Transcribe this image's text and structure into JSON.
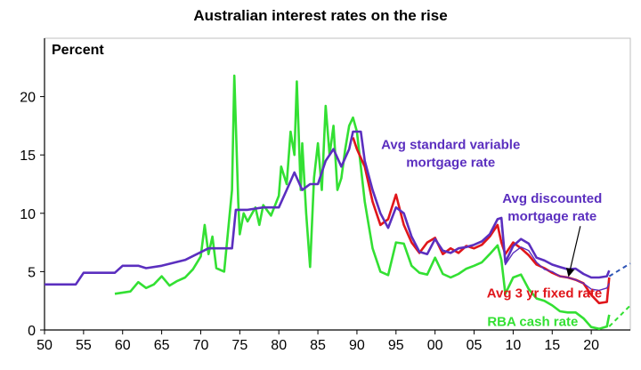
{
  "chart_data": {
    "type": "line",
    "title": "Australian interest rates on the rise",
    "ylabel": "Percent",
    "xlim": [
      1950,
      2025
    ],
    "ylim": [
      0,
      25
    ],
    "x_ticks": [
      1950,
      1955,
      1960,
      1965,
      1970,
      1975,
      1980,
      1985,
      1990,
      1995,
      2000,
      2005,
      2010,
      2015,
      2020
    ],
    "x_tick_labels": [
      "50",
      "55",
      "60",
      "65",
      "70",
      "75",
      "80",
      "85",
      "90",
      "95",
      "00",
      "05",
      "10",
      "15",
      "20"
    ],
    "y_ticks": [
      0,
      5,
      10,
      15,
      20
    ],
    "y_tick_labels": [
      "0",
      "5",
      "10",
      "15",
      "20"
    ],
    "grid": false,
    "series": [
      {
        "name": "Avg standard variable mortgage rate",
        "color": "#5b2fbf",
        "points": [
          [
            1950,
            3.9
          ],
          [
            1954,
            3.9
          ],
          [
            1955,
            4.9
          ],
          [
            1959,
            4.9
          ],
          [
            1960,
            5.5
          ],
          [
            1962,
            5.5
          ],
          [
            1963,
            5.3
          ],
          [
            1965,
            5.5
          ],
          [
            1968,
            6.0
          ],
          [
            1971,
            7.0
          ],
          [
            1974,
            7.0
          ],
          [
            1974.5,
            10.3
          ],
          [
            1976,
            10.3
          ],
          [
            1978,
            10.5
          ],
          [
            1980,
            10.5
          ],
          [
            1981,
            12.0
          ],
          [
            1982,
            13.5
          ],
          [
            1983,
            12.0
          ],
          [
            1984,
            12.5
          ],
          [
            1985,
            12.5
          ],
          [
            1986,
            14.5
          ],
          [
            1987,
            15.5
          ],
          [
            1988,
            14.0
          ],
          [
            1989,
            15.5
          ],
          [
            1989.5,
            17.0
          ],
          [
            1990.5,
            17.0
          ],
          [
            1991,
            14.5
          ],
          [
            1992,
            12.0
          ],
          [
            1993,
            10.0
          ],
          [
            1994,
            8.75
          ],
          [
            1995,
            10.5
          ],
          [
            1996,
            10.0
          ],
          [
            1997,
            8.0
          ],
          [
            1998,
            6.7
          ],
          [
            1999,
            6.5
          ],
          [
            2000,
            7.8
          ],
          [
            2001,
            6.8
          ],
          [
            2002,
            6.6
          ],
          [
            2003,
            7.0
          ],
          [
            2004,
            7.1
          ],
          [
            2005,
            7.3
          ],
          [
            2006,
            7.6
          ],
          [
            2007,
            8.2
          ],
          [
            2008,
            9.5
          ],
          [
            2008.5,
            9.6
          ],
          [
            2009,
            5.8
          ],
          [
            2010,
            7.2
          ],
          [
            2011,
            7.8
          ],
          [
            2012,
            7.4
          ],
          [
            2013,
            6.2
          ],
          [
            2014,
            5.95
          ],
          [
            2015,
            5.6
          ],
          [
            2016,
            5.4
          ],
          [
            2017,
            5.2
          ],
          [
            2018,
            5.25
          ],
          [
            2019,
            4.8
          ],
          [
            2020,
            4.5
          ],
          [
            2021,
            4.5
          ],
          [
            2022,
            4.6
          ],
          [
            2022.3,
            5.1
          ]
        ]
      },
      {
        "name": "Avg discounted mortgage rate",
        "color": "#5b2fbf",
        "points": [
          [
            2008.5,
            9.0
          ],
          [
            2009,
            5.6
          ],
          [
            2010,
            6.6
          ],
          [
            2011,
            7.1
          ],
          [
            2012,
            6.8
          ],
          [
            2013,
            5.8
          ],
          [
            2014,
            5.2
          ],
          [
            2015,
            5.0
          ],
          [
            2016,
            4.6
          ],
          [
            2017,
            4.5
          ],
          [
            2018,
            4.3
          ],
          [
            2019,
            4.0
          ],
          [
            2020,
            3.5
          ],
          [
            2021,
            3.4
          ],
          [
            2022,
            3.6
          ],
          [
            2022.3,
            4.0
          ]
        ]
      },
      {
        "name": "Avg 3 yr fixed rate",
        "color": "#e0161b",
        "points": [
          [
            1989.5,
            16.5
          ],
          [
            1990,
            15.5
          ],
          [
            1991,
            14.0
          ],
          [
            1992,
            11.0
          ],
          [
            1993,
            9.0
          ],
          [
            1994,
            9.5
          ],
          [
            1995,
            11.6
          ],
          [
            1996,
            9.0
          ],
          [
            1997,
            7.5
          ],
          [
            1998,
            6.6
          ],
          [
            1999,
            7.5
          ],
          [
            2000,
            7.9
          ],
          [
            2001,
            6.5
          ],
          [
            2002,
            7.0
          ],
          [
            2003,
            6.6
          ],
          [
            2004,
            7.2
          ],
          [
            2005,
            7.0
          ],
          [
            2006,
            7.3
          ],
          [
            2007,
            8.0
          ],
          [
            2008,
            9.0
          ],
          [
            2008.5,
            7.5
          ],
          [
            2009,
            6.5
          ],
          [
            2010,
            7.5
          ],
          [
            2011,
            7.0
          ],
          [
            2012,
            6.4
          ],
          [
            2013,
            5.6
          ],
          [
            2014,
            5.3
          ],
          [
            2015,
            4.9
          ],
          [
            2016,
            4.6
          ],
          [
            2017,
            4.5
          ],
          [
            2018,
            4.3
          ],
          [
            2019,
            4.0
          ],
          [
            2020,
            3.0
          ],
          [
            2021,
            2.3
          ],
          [
            2022,
            2.4
          ],
          [
            2022.3,
            4.5
          ]
        ]
      },
      {
        "name": "RBA cash rate",
        "color": "#33e033",
        "points": [
          [
            1959,
            3.1
          ],
          [
            1961,
            3.3
          ],
          [
            1962,
            4.1
          ],
          [
            1963,
            3.6
          ],
          [
            1964,
            3.9
          ],
          [
            1965,
            4.6
          ],
          [
            1966,
            3.8
          ],
          [
            1967,
            4.2
          ],
          [
            1968,
            4.5
          ],
          [
            1969,
            5.2
          ],
          [
            1970,
            6.3
          ],
          [
            1970.5,
            9.0
          ],
          [
            1971,
            6.5
          ],
          [
            1971.5,
            8.0
          ],
          [
            1972,
            5.3
          ],
          [
            1973,
            5.0
          ],
          [
            1973.5,
            8.5
          ],
          [
            1974,
            12.0
          ],
          [
            1974.3,
            21.8
          ],
          [
            1974.8,
            11.0
          ],
          [
            1975,
            8.2
          ],
          [
            1975.5,
            10.0
          ],
          [
            1976,
            9.3
          ],
          [
            1977,
            10.5
          ],
          [
            1977.5,
            9.0
          ],
          [
            1978,
            10.7
          ],
          [
            1979,
            9.8
          ],
          [
            1980,
            11.5
          ],
          [
            1980.3,
            14.0
          ],
          [
            1981,
            12.5
          ],
          [
            1981.5,
            17.0
          ],
          [
            1982,
            15.0
          ],
          [
            1982.3,
            21.3
          ],
          [
            1982.8,
            12.0
          ],
          [
            1983,
            16.0
          ],
          [
            1983.5,
            10.0
          ],
          [
            1984,
            5.4
          ],
          [
            1984.5,
            13.0
          ],
          [
            1985,
            16.0
          ],
          [
            1985.5,
            12.0
          ],
          [
            1986,
            19.2
          ],
          [
            1986.5,
            15.0
          ],
          [
            1987,
            17.5
          ],
          [
            1987.5,
            12.0
          ],
          [
            1988,
            13.0
          ],
          [
            1988.5,
            15.5
          ],
          [
            1989,
            17.5
          ],
          [
            1989.5,
            18.2
          ],
          [
            1990,
            17.0
          ],
          [
            1990.5,
            14.0
          ],
          [
            1991,
            11.0
          ],
          [
            1992,
            7.0
          ],
          [
            1993,
            5.0
          ],
          [
            1994,
            4.7
          ],
          [
            1995,
            7.5
          ],
          [
            1996,
            7.4
          ],
          [
            1997,
            5.5
          ],
          [
            1998,
            4.9
          ],
          [
            1999,
            4.75
          ],
          [
            2000,
            6.2
          ],
          [
            2001,
            4.8
          ],
          [
            2002,
            4.5
          ],
          [
            2003,
            4.8
          ],
          [
            2004,
            5.25
          ],
          [
            2005,
            5.5
          ],
          [
            2006,
            5.8
          ],
          [
            2007,
            6.5
          ],
          [
            2008,
            7.25
          ],
          [
            2008.5,
            6.0
          ],
          [
            2009,
            3.1
          ],
          [
            2010,
            4.5
          ],
          [
            2011,
            4.75
          ],
          [
            2012,
            3.5
          ],
          [
            2013,
            2.7
          ],
          [
            2014,
            2.5
          ],
          [
            2015,
            2.1
          ],
          [
            2016,
            1.6
          ],
          [
            2017,
            1.5
          ],
          [
            2018,
            1.5
          ],
          [
            2019,
            1.0
          ],
          [
            2020,
            0.25
          ],
          [
            2021,
            0.1
          ],
          [
            2022,
            0.3
          ],
          [
            2022.3,
            1.3
          ]
        ]
      }
    ],
    "projections": [
      {
        "of": "Avg standard variable mortgage rate",
        "color": "#2f55b5",
        "style": "dashed",
        "points": [
          [
            2022.3,
            4.6
          ],
          [
            2025,
            5.7
          ]
        ]
      },
      {
        "of": "RBA cash rate",
        "color": "#33e033",
        "style": "dashed",
        "points": [
          [
            2022.3,
            0.3
          ],
          [
            2025,
            2.1
          ]
        ]
      }
    ],
    "annotations": [
      {
        "lines": [
          "Avg standard variable",
          "mortgage rate"
        ],
        "color": "#5b2fbf",
        "at": [
          2002,
          15.5
        ]
      },
      {
        "lines": [
          "Avg discounted",
          "mortgage rate"
        ],
        "color": "#5b2fbf",
        "at": [
          2015,
          10.9
        ]
      },
      {
        "lines": [
          "Avg 3 yr fixed rate"
        ],
        "color": "#e0161b",
        "at": [
          2014,
          2.8
        ]
      },
      {
        "lines": [
          "RBA cash rate"
        ],
        "color": "#33e033",
        "at": [
          2012.5,
          0.35
        ]
      }
    ]
  }
}
